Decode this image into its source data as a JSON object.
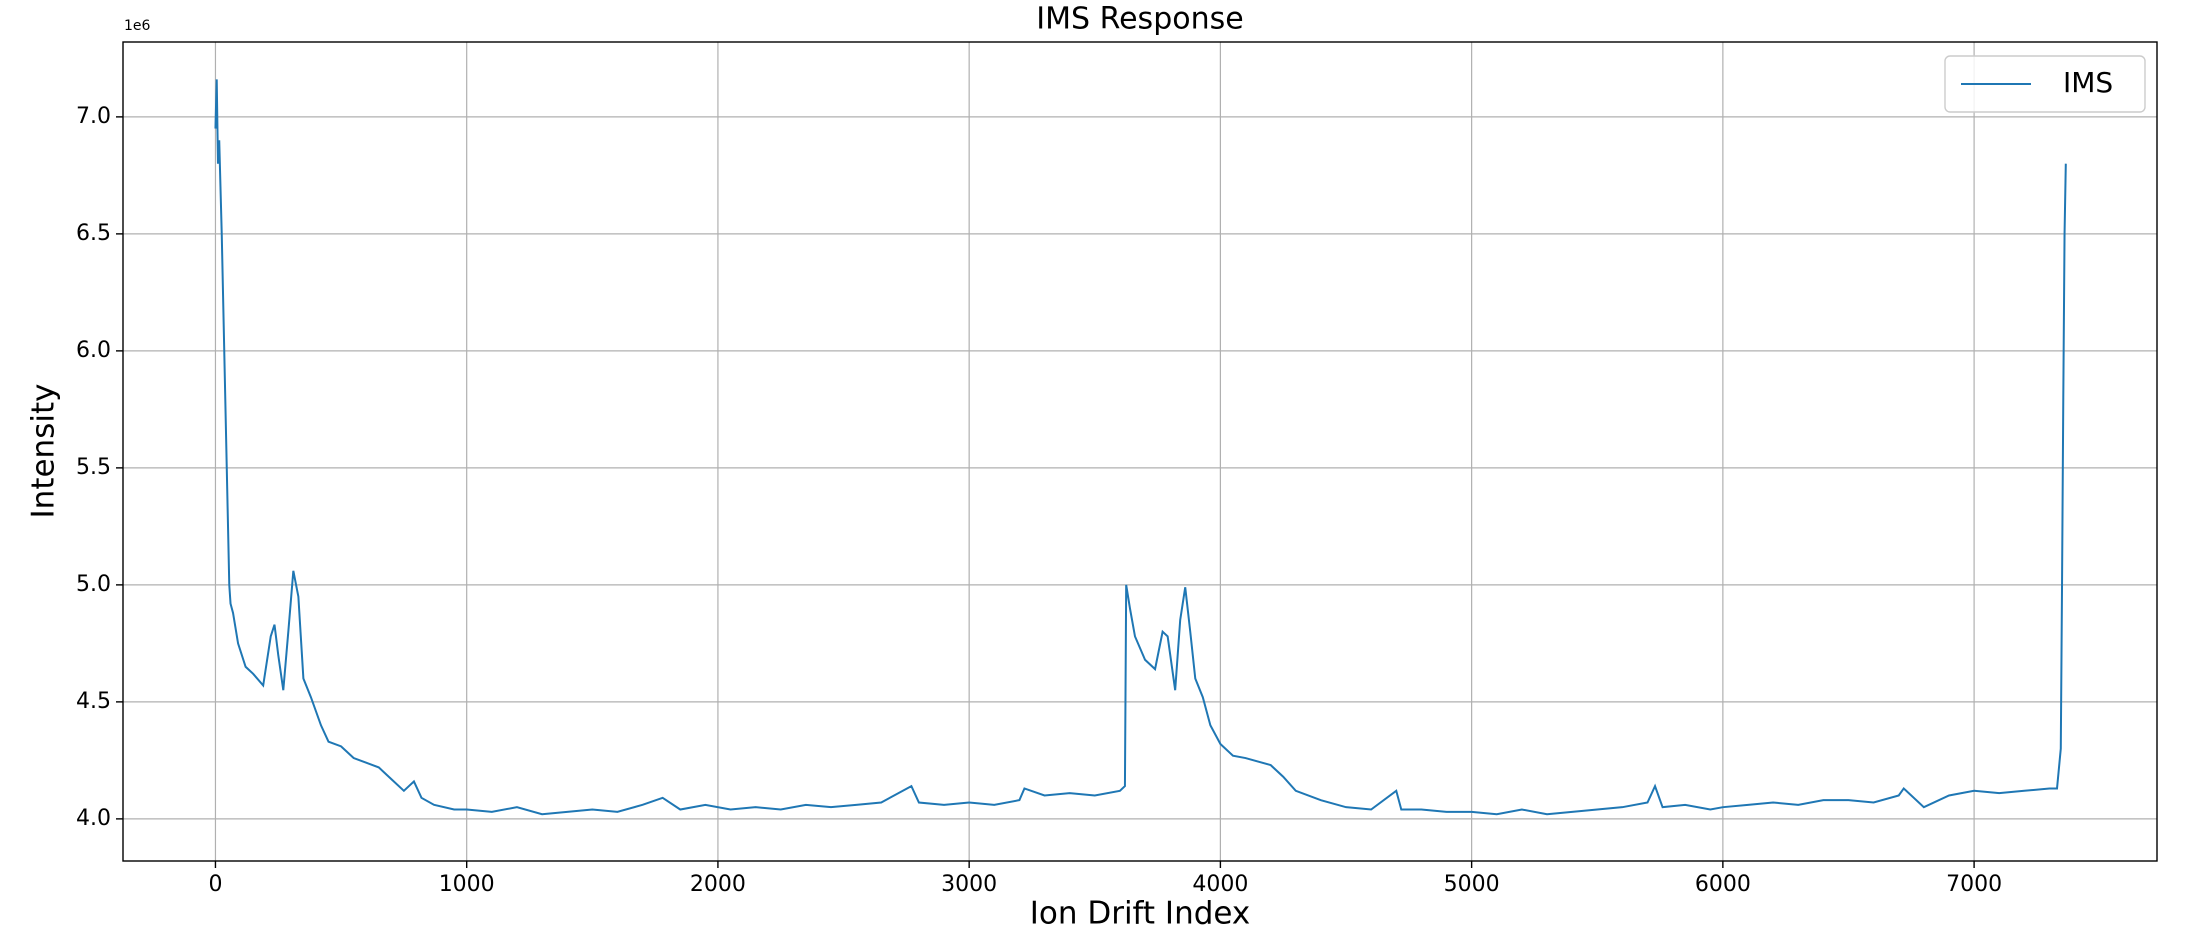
{
  "chart_data": {
    "type": "line",
    "title": "IMS Response",
    "x_label": "Ion Drift Index",
    "y_label": "Intensity",
    "y_offset_label": "1e6",
    "x": [
      0,
      5,
      10,
      15,
      25,
      35,
      45,
      55,
      60,
      70,
      90,
      120,
      150,
      190,
      220,
      235,
      250,
      270,
      290,
      310,
      330,
      350,
      380,
      420,
      450,
      500,
      550,
      600,
      650,
      700,
      750,
      790,
      820,
      870,
      950,
      1000,
      1100,
      1200,
      1300,
      1400,
      1500,
      1600,
      1700,
      1780,
      1850,
      1950,
      2050,
      2150,
      2250,
      2350,
      2450,
      2550,
      2650,
      2770,
      2800,
      2900,
      3000,
      3100,
      3200,
      3220,
      3300,
      3400,
      3500,
      3600,
      3620,
      3625,
      3640,
      3660,
      3700,
      3740,
      3770,
      3790,
      3820,
      3840,
      3860,
      3880,
      3900,
      3930,
      3960,
      4000,
      4050,
      4100,
      4200,
      4250,
      4300,
      4400,
      4500,
      4600,
      4700,
      4720,
      4800,
      4900,
      5000,
      5100,
      5200,
      5300,
      5400,
      5500,
      5600,
      5700,
      5730,
      5760,
      5850,
      5950,
      6000,
      6100,
      6200,
      6300,
      6400,
      6500,
      6600,
      6700,
      6720,
      6800,
      6900,
      7000,
      7100,
      7200,
      7300,
      7330,
      7345,
      7350,
      7355,
      7360,
      7365
    ],
    "series": [
      {
        "name": "IMS",
        "color": "#1f77b4",
        "values": [
          6.95,
          7.16,
          6.8,
          6.9,
          6.5,
          6.0,
          5.5,
          5.0,
          4.92,
          4.88,
          4.75,
          4.65,
          4.62,
          4.57,
          4.78,
          4.83,
          4.7,
          4.55,
          4.8,
          5.06,
          4.95,
          4.6,
          4.52,
          4.4,
          4.33,
          4.31,
          4.26,
          4.24,
          4.22,
          4.17,
          4.12,
          4.16,
          4.09,
          4.06,
          4.04,
          4.04,
          4.03,
          4.05,
          4.02,
          4.03,
          4.04,
          4.03,
          4.06,
          4.09,
          4.04,
          4.06,
          4.04,
          4.05,
          4.04,
          4.06,
          4.05,
          4.06,
          4.07,
          4.14,
          4.07,
          4.06,
          4.07,
          4.06,
          4.08,
          4.13,
          4.1,
          4.11,
          4.1,
          4.12,
          4.14,
          5.0,
          4.9,
          4.78,
          4.68,
          4.64,
          4.8,
          4.78,
          4.55,
          4.85,
          4.99,
          4.8,
          4.6,
          4.52,
          4.4,
          4.32,
          4.27,
          4.26,
          4.23,
          4.18,
          4.12,
          4.08,
          4.05,
          4.04,
          4.12,
          4.04,
          4.04,
          4.03,
          4.03,
          4.02,
          4.04,
          4.02,
          4.03,
          4.04,
          4.05,
          4.07,
          4.14,
          4.05,
          4.06,
          4.04,
          4.05,
          4.06,
          4.07,
          4.06,
          4.08,
          4.08,
          4.07,
          4.1,
          4.13,
          4.05,
          4.1,
          4.12,
          4.11,
          4.12,
          4.13,
          4.13,
          4.3,
          5.0,
          5.8,
          6.5,
          6.8
        ]
      }
    ],
    "xlim": [
      -368,
      7728
    ],
    "ylim": [
      3.82,
      7.32
    ],
    "xticks": [
      0,
      1000,
      2000,
      3000,
      4000,
      5000,
      6000,
      7000
    ],
    "yticks": [
      {
        "value": 4,
        "label": "4.0"
      },
      {
        "value": 4.5,
        "label": "4.5"
      },
      {
        "value": 5,
        "label": "5.0"
      },
      {
        "value": 5.5,
        "label": "5.5"
      },
      {
        "value": 6,
        "label": "6.0"
      },
      {
        "value": 6.5,
        "label": "6.5"
      },
      {
        "value": 7,
        "label": "7.0"
      }
    ],
    "grid": true,
    "legend": "upper right"
  }
}
